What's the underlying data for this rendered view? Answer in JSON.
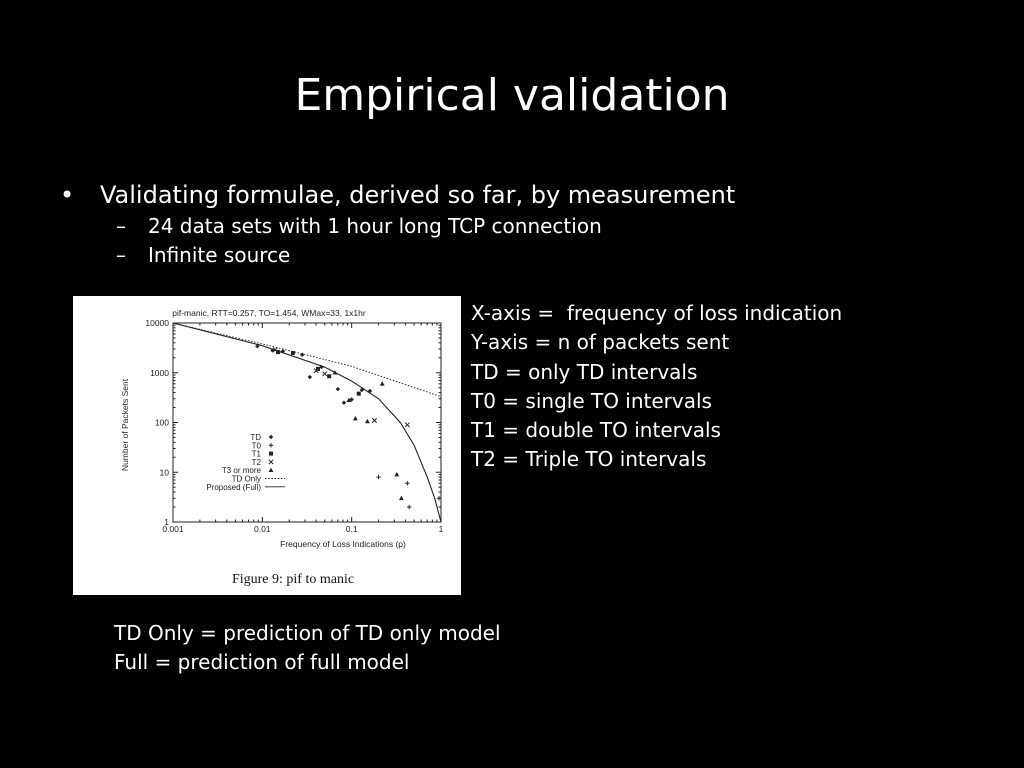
{
  "slide": {
    "title": "Empirical validation",
    "bullet_main": "Validating formulae, derived so far, by measurement",
    "bullet_mark": "•",
    "sub_mark": "–",
    "sub_bullets": [
      "24 data sets with 1 hour long TCP connection",
      "Infinite source"
    ]
  },
  "notes": [
    "X-axis =  frequency of loss indication",
    "Y-axis = n of packets sent",
    "TD = only TD intervals",
    "T0 = single TO intervals",
    "T1 = double TO intervals",
    "T2 = Triple TO intervals"
  ],
  "footnotes": [
    "TD Only = prediction of TD only model",
    "Full = prediction of full model"
  ],
  "figure_caption": "Figure 9: pif to manic",
  "chart_data": {
    "type": "scatter",
    "title": "pif-manic, RTT=0.257, TO=1.454, WMax=33, 1x1hr",
    "xlabel": "Frequency of Loss Indications (p)",
    "ylabel": "Number of Packets Sent",
    "x_scale": "log",
    "y_scale": "log",
    "xlim": [
      0.001,
      1
    ],
    "ylim": [
      1,
      10000
    ],
    "x_ticks": [
      0.001,
      0.01,
      0.1,
      1
    ],
    "x_tick_labels": [
      "0.001",
      "0.01",
      "0.1",
      "1"
    ],
    "y_ticks": [
      1,
      10,
      100,
      1000,
      10000
    ],
    "y_tick_labels": [
      "1",
      "10",
      "100",
      "1000",
      "10000"
    ],
    "legend_position": "bottom-left",
    "series": [
      {
        "name": "TD",
        "marker": "diamond",
        "points": [
          [
            0.0088,
            3400
          ],
          [
            0.013,
            2800
          ],
          [
            0.017,
            2700
          ],
          [
            0.028,
            2300
          ],
          [
            0.034,
            820
          ],
          [
            0.046,
            1300
          ],
          [
            0.07,
            470
          ],
          [
            0.082,
            250
          ],
          [
            0.1,
            290
          ],
          [
            0.13,
            450
          ],
          [
            0.16,
            430
          ]
        ]
      },
      {
        "name": "T0",
        "marker": "plus",
        "points": [
          [
            0.2,
            8
          ],
          [
            0.42,
            6
          ],
          [
            0.44,
            2
          ],
          [
            0.95,
            3
          ]
        ]
      },
      {
        "name": "T1",
        "marker": "square",
        "points": [
          [
            0.015,
            2600
          ],
          [
            0.022,
            2500
          ],
          [
            0.042,
            1200
          ],
          [
            0.056,
            850
          ],
          [
            0.12,
            380
          ]
        ]
      },
      {
        "name": "T2",
        "marker": "cross",
        "points": [
          [
            0.014,
            2900
          ],
          [
            0.04,
            1100
          ],
          [
            0.05,
            950
          ],
          [
            0.18,
            110
          ],
          [
            0.42,
            90
          ]
        ]
      },
      {
        "name": "T3 or more",
        "marker": "triangle",
        "points": [
          [
            0.065,
            1000
          ],
          [
            0.093,
            280
          ],
          [
            0.11,
            120
          ],
          [
            0.15,
            105
          ],
          [
            0.22,
            600
          ],
          [
            0.32,
            9
          ],
          [
            0.36,
            3
          ]
        ]
      },
      {
        "name": "TD Only",
        "line": "dotted",
        "points": [
          [
            0.001,
            10000
          ],
          [
            0.01,
            3800
          ],
          [
            0.1,
            1350
          ],
          [
            1,
            330
          ]
        ]
      },
      {
        "name": "Proposed (Full)",
        "line": "solid",
        "points": [
          [
            0.001,
            10000
          ],
          [
            0.01,
            3500
          ],
          [
            0.05,
            1300
          ],
          [
            0.1,
            680
          ],
          [
            0.2,
            300
          ],
          [
            0.35,
            100
          ],
          [
            0.5,
            35
          ],
          [
            0.7,
            8
          ],
          [
            0.85,
            3
          ],
          [
            1,
            1
          ]
        ]
      }
    ]
  }
}
